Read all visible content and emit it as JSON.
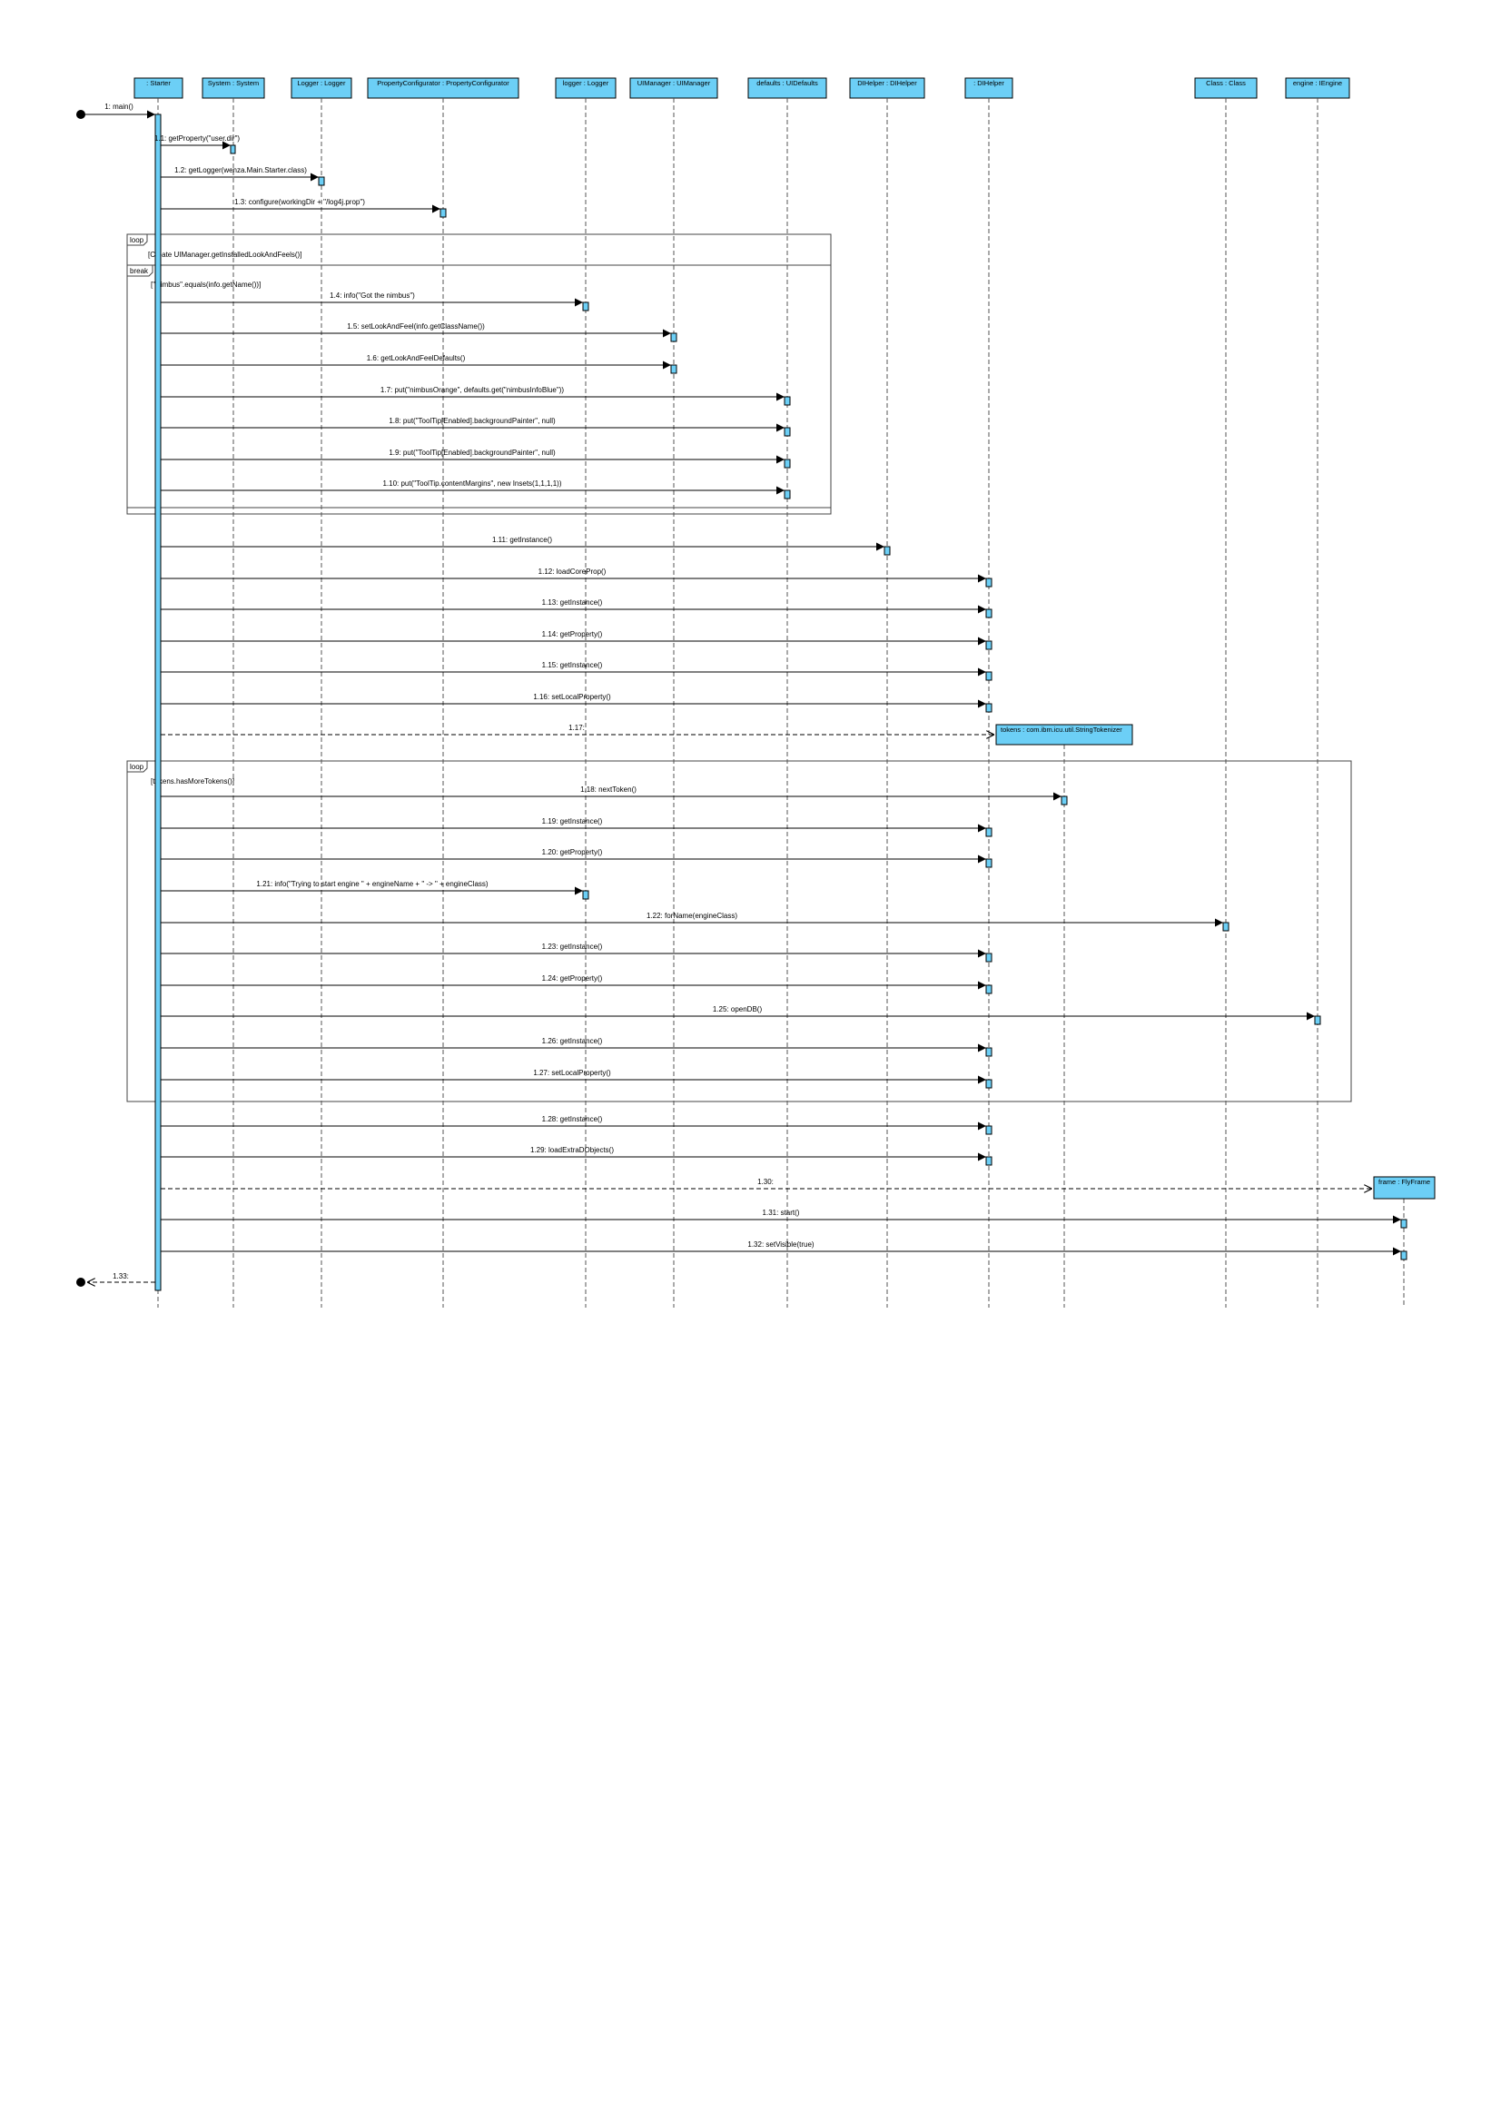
{
  "diagram": {
    "type": "sequence",
    "colors": {
      "lifeline_fill": "#6ccff6",
      "line": "#000000"
    },
    "lifelines": [
      {
        "id": "starter",
        "label": ": Starter"
      },
      {
        "id": "system",
        "label": "System : System"
      },
      {
        "id": "logger1",
        "label": "Logger : Logger"
      },
      {
        "id": "propcfg",
        "label": "PropertyConfigurator : PropertyConfigurator"
      },
      {
        "id": "logger2",
        "label": "logger : Logger"
      },
      {
        "id": "uimgr",
        "label": "UIManager : UIManager"
      },
      {
        "id": "defaults",
        "label": "defaults : UIDefaults"
      },
      {
        "id": "dihelper",
        "label": "DIHelper : DIHelper"
      },
      {
        "id": "dihelper2",
        "label": ": DIHelper"
      },
      {
        "id": "class",
        "label": "Class : Class"
      },
      {
        "id": "engine",
        "label": "engine : IEngine"
      }
    ],
    "created": [
      {
        "id": "tokens",
        "label": "tokens : com.ibm.icu.util.StringTokenizer"
      },
      {
        "id": "frame",
        "label": "frame : FlyFrame"
      }
    ],
    "messages": [
      {
        "label": "1: main()"
      },
      {
        "label": "1.1: getProperty(\"user.dir\")"
      },
      {
        "label": "1.2: getLogger(wenza.Main.Starter.class)"
      },
      {
        "label": "1.3: configure(workingDir + \"/log4j.prop\")"
      },
      {
        "label": "1.4: info(\"Got the nimbus\")"
      },
      {
        "label": "1.5: setLookAndFeel(info.getClassName())"
      },
      {
        "label": "1.6: getLookAndFeelDefaults()"
      },
      {
        "label": "1.7: put(\"nimbusOrange\", defaults.get(\"nimbusInfoBlue\"))"
      },
      {
        "label": "1.8: put(\"ToolTip[Enabled].backgroundPainter\", null)"
      },
      {
        "label": "1.9: put(\"ToolTip[Enabled].backgroundPainter\", null)"
      },
      {
        "label": "1.10: put(\"ToolTip.contentMargins\", new Insets(1,1,1,1))"
      },
      {
        "label": "1.11: getInstance()"
      },
      {
        "label": "1.12: loadCoreProp()"
      },
      {
        "label": "1.13: getInstance()"
      },
      {
        "label": "1.14: getProperty()"
      },
      {
        "label": "1.15: getInstance()"
      },
      {
        "label": "1.16: setLocalProperty()"
      },
      {
        "label": "1.17:"
      },
      {
        "label": "1.18: nextToken()"
      },
      {
        "label": "1.19: getInstance()"
      },
      {
        "label": "1.20: getProperty()"
      },
      {
        "label": "1.21: info(\"Trying to start engine \" + engineName + \" -> \" + engineClass)"
      },
      {
        "label": "1.22: forName(engineClass)"
      },
      {
        "label": "1.23: getInstance()"
      },
      {
        "label": "1.24: getProperty()"
      },
      {
        "label": "1.25: openDB()"
      },
      {
        "label": "1.26: getInstance()"
      },
      {
        "label": "1.27: setLocalProperty()"
      },
      {
        "label": "1.28: getInstance()"
      },
      {
        "label": "1.29: loadExtraDObjects()"
      },
      {
        "label": "1.30:"
      },
      {
        "label": "1.31: start()"
      },
      {
        "label": "1.32: setVisible(true)"
      },
      {
        "label": "1.33:"
      }
    ],
    "fragments": [
      {
        "kind": "loop",
        "guard": "[Create UIManager.getInstalledLookAndFeels()]"
      },
      {
        "kind": "break",
        "guard": "[\"Nimbus\".equals(info.getName())]"
      },
      {
        "kind": "loop",
        "guard": "[tokens.hasMoreTokens()]"
      }
    ]
  }
}
